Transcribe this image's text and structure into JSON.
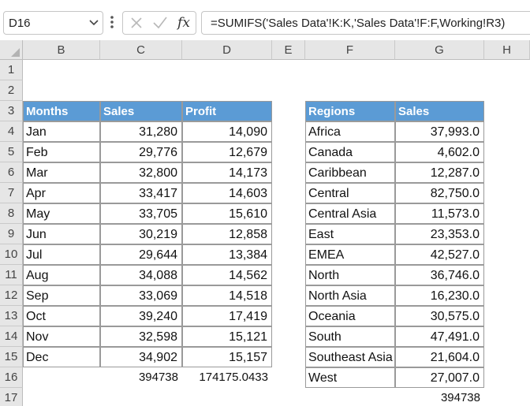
{
  "formula_bar": {
    "name_box": "D16",
    "fx_label": "fx",
    "formula": "=SUMIFS('Sales Data'!K:K,'Sales Data'!F:F,Working!R3)"
  },
  "columns": [
    "B",
    "C",
    "D",
    "E",
    "F",
    "G",
    "H"
  ],
  "rows": [
    "1",
    "2",
    "3",
    "4",
    "5",
    "6",
    "7",
    "8",
    "9",
    "10",
    "11",
    "12",
    "13",
    "14",
    "15",
    "16",
    "17"
  ],
  "monthly_table": {
    "headers": [
      "Months",
      "Sales",
      "Profit"
    ],
    "rows": [
      [
        "Jan",
        "31,280",
        "14,090"
      ],
      [
        "Feb",
        "29,776",
        "12,679"
      ],
      [
        "Mar",
        "32,800",
        "14,173"
      ],
      [
        "Apr",
        "33,417",
        "14,603"
      ],
      [
        "May",
        "33,705",
        "15,610"
      ],
      [
        "Jun",
        "30,219",
        "12,858"
      ],
      [
        "Jul",
        "29,644",
        "13,384"
      ],
      [
        "Aug",
        "34,088",
        "14,562"
      ],
      [
        "Sep",
        "33,069",
        "14,518"
      ],
      [
        "Oct",
        "39,240",
        "17,419"
      ],
      [
        "Nov",
        "32,598",
        "15,121"
      ],
      [
        "Dec",
        "34,902",
        "15,157"
      ]
    ],
    "totals": [
      "394738",
      "174175.0433"
    ]
  },
  "region_table": {
    "headers": [
      "Regions",
      "Sales"
    ],
    "rows": [
      [
        "Africa",
        "37,993.0"
      ],
      [
        "Canada",
        "4,602.0"
      ],
      [
        "Caribbean",
        "12,287.0"
      ],
      [
        "Central",
        "82,750.0"
      ],
      [
        "Central Asia",
        "11,573.0"
      ],
      [
        "East",
        "23,353.0"
      ],
      [
        "EMEA",
        "42,527.0"
      ],
      [
        "North",
        "36,746.0"
      ],
      [
        "North Asia",
        "16,230.0"
      ],
      [
        "Oceania",
        "30,575.0"
      ],
      [
        "South",
        "47,491.0"
      ],
      [
        "Southeast Asia",
        "21,604.0"
      ],
      [
        "West",
        "27,007.0"
      ]
    ],
    "total": "394738"
  },
  "colors": {
    "table_header": "#5b9bd5",
    "grid_header_bg": "#e6e6e6"
  }
}
